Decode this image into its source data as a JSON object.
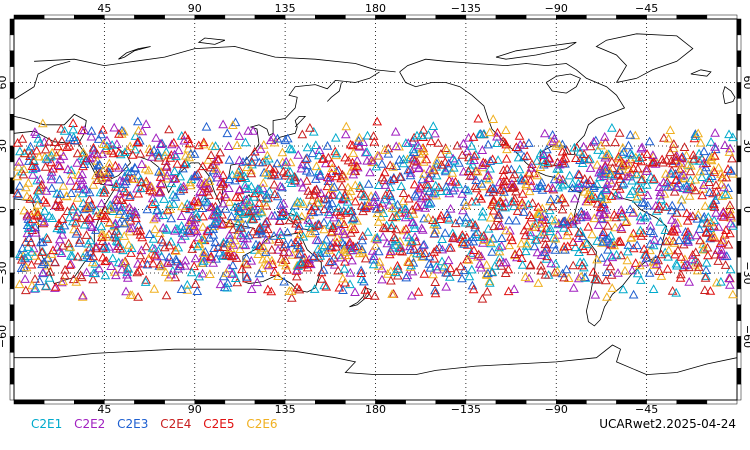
{
  "map": {
    "top_lon_labels": [
      "45",
      "90",
      "135",
      "180",
      "−135",
      "−90",
      "−45"
    ],
    "bottom_lon_labels": [
      "45",
      "90",
      "135",
      "180",
      "−135",
      "−90",
      "−45"
    ],
    "lat_labels": [
      "60",
      "30",
      "0",
      "−30",
      "−60"
    ],
    "grid": true,
    "projection": "cylindrical-equidistant",
    "land_outline_color": "#000000",
    "observation_marker": "triangle-outline",
    "observation_lat_range": [
      -45,
      45
    ]
  },
  "legend": {
    "items": [
      {
        "label": "C2E1",
        "color": "#00aacc"
      },
      {
        "label": "C2E2",
        "color": "#a020c0"
      },
      {
        "label": "C2E3",
        "color": "#1e5fd0"
      },
      {
        "label": "C2E4",
        "color": "#c81e1e"
      },
      {
        "label": "C2E5",
        "color": "#e01010"
      },
      {
        "label": "C2E6",
        "color": "#f0b020"
      }
    ]
  },
  "stamp": "UCARwet2.2025-04-24"
}
